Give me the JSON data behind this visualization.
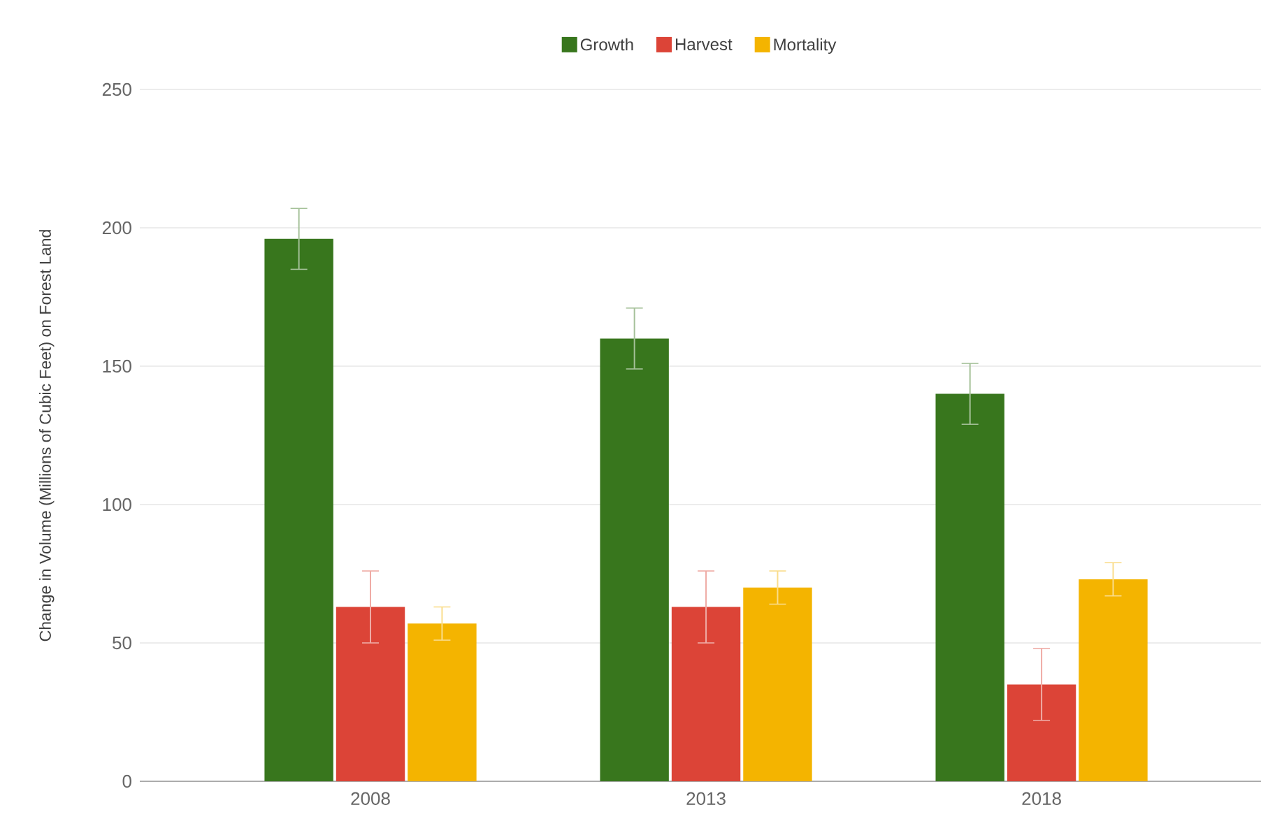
{
  "chart_data": {
    "type": "bar",
    "ylabel": "Change in Volume (Millions of  Cubic Feet) on Forest Land",
    "categories": [
      "2008",
      "2013",
      "2018"
    ],
    "series": [
      {
        "name": "Growth",
        "color": "#38761d",
        "values": [
          196,
          160,
          140
        ],
        "errors": [
          11,
          11,
          11
        ]
      },
      {
        "name": "Harvest",
        "color": "#dc4437",
        "values": [
          63,
          63,
          35
        ],
        "errors": [
          13,
          13,
          13
        ]
      },
      {
        "name": "Mortality",
        "color": "#f4b400",
        "values": [
          57,
          70,
          73
        ],
        "errors": [
          6,
          6,
          6
        ]
      }
    ],
    "ylim": [
      0,
      250
    ],
    "yticks": [
      0,
      50,
      100,
      150,
      200,
      250
    ],
    "grid": "y",
    "legend": "top"
  }
}
